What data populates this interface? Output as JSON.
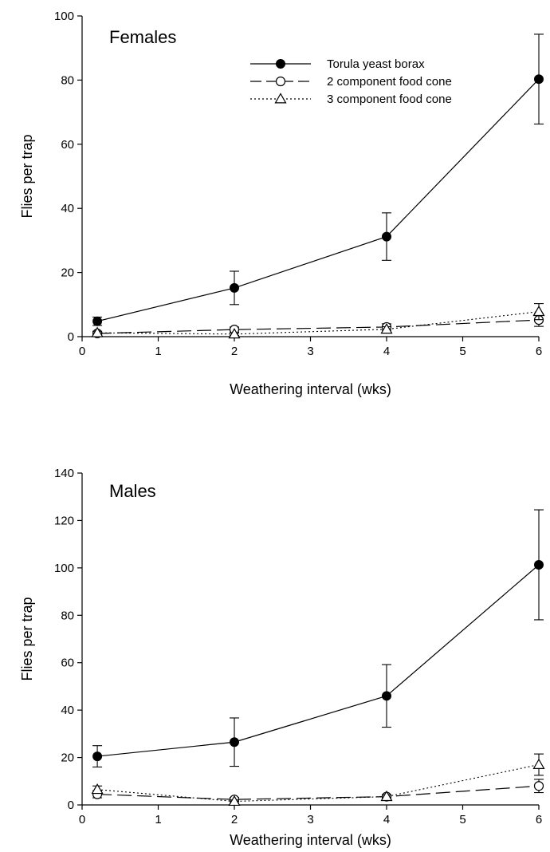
{
  "chart_data": [
    {
      "type": "line",
      "title": "Females",
      "xlabel": "Weathering interval (wks)",
      "ylabel": "Flies per trap",
      "xlim": [
        0,
        6
      ],
      "ylim": [
        0,
        100
      ],
      "xticks": [
        0,
        1,
        2,
        3,
        4,
        5,
        6
      ],
      "yticks": [
        0,
        20,
        40,
        60,
        80,
        100
      ],
      "grid": false,
      "legend": "top-center",
      "x": [
        0.2,
        2,
        4,
        6
      ],
      "series": [
        {
          "name": "Torula yeast borax",
          "style": "solid",
          "marker": "filled-circle",
          "values": [
            4.8,
            15.2,
            31.2,
            80.3
          ],
          "err": [
            1.3,
            5.2,
            7.4,
            14.0
          ]
        },
        {
          "name": "2 component food cone",
          "style": "dashed",
          "marker": "open-circle",
          "values": [
            1.0,
            2.2,
            3.0,
            5.2
          ],
          "err": [
            0.5,
            0.8,
            1.0,
            2.0
          ]
        },
        {
          "name": "3 component food cone",
          "style": "dotted",
          "marker": "open-triangle",
          "values": [
            1.2,
            0.8,
            2.3,
            7.8
          ],
          "err": [
            0.5,
            0.4,
            0.8,
            2.5
          ]
        }
      ]
    },
    {
      "type": "line",
      "title": "Males",
      "xlabel": "Weathering interval (wks)",
      "ylabel": "Flies per trap",
      "xlim": [
        0,
        6
      ],
      "ylim": [
        0,
        140
      ],
      "xticks": [
        0,
        1,
        2,
        3,
        4,
        5,
        6
      ],
      "yticks": [
        0,
        20,
        40,
        60,
        80,
        100,
        120,
        140
      ],
      "grid": false,
      "legend": "none",
      "x": [
        0.2,
        2,
        4,
        6
      ],
      "series": [
        {
          "name": "Torula yeast borax",
          "style": "solid",
          "marker": "filled-circle",
          "values": [
            20.5,
            26.5,
            46.0,
            101.3
          ],
          "err": [
            4.5,
            10.2,
            13.2,
            23.2
          ]
        },
        {
          "name": "2 component food cone",
          "style": "dashed",
          "marker": "open-circle",
          "values": [
            4.5,
            2.3,
            3.5,
            8.0
          ],
          "err": [
            1.5,
            0.8,
            0.8,
            2.8
          ]
        },
        {
          "name": "3 component food cone",
          "style": "dotted",
          "marker": "open-triangle",
          "values": [
            6.5,
            1.5,
            3.5,
            17.0
          ],
          "err": [
            1.5,
            0.6,
            0.8,
            4.5
          ]
        }
      ]
    }
  ]
}
